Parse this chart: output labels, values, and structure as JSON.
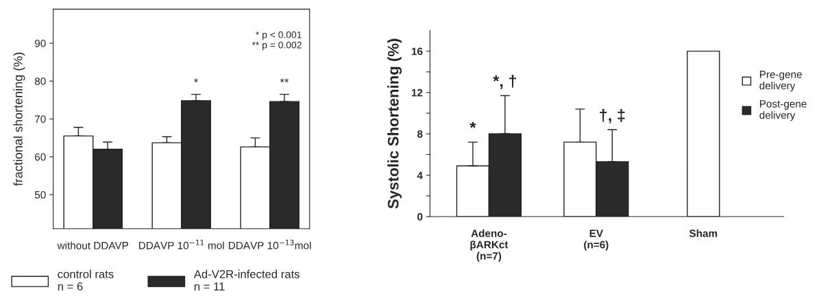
{
  "chart_data": [
    {
      "type": "bar",
      "ylabel": "fractional shortening (%)",
      "categories": [
        "without DDAVP",
        "DDAVP 10$^{−11}$ mol",
        "DDAVP 10$^{−13}$mol"
      ],
      "series": [
        {
          "name": "control rats\nn = 6",
          "color": "#ffffff",
          "values": [
            65.5,
            63.7,
            62.6
          ],
          "errors": [
            [
              65.5,
              67.8
            ],
            [
              63.7,
              65.3
            ],
            [
              62.6,
              65.0
            ]
          ]
        },
        {
          "name": "Ad-V2R-infected rats\nn = 11",
          "color": "#2a2a2a",
          "values": [
            62.0,
            74.8,
            74.6
          ],
          "errors": [
            [
              62.0,
              63.9
            ],
            [
              74.8,
              76.5
            ],
            [
              74.6,
              76.5
            ]
          ]
        }
      ],
      "ylim": [
        41,
        99
      ],
      "yticks": [
        50,
        60,
        70,
        80,
        90
      ],
      "legend": "bottom",
      "annotations": [
        "* p < 0.001\n** p = 0.002",
        {
          "text": "*",
          "x": "DDAVP 10$^{−11}$ mol",
          "y": 74.8
        },
        {
          "text": "**",
          "x": "DDAVP 10$^{−13}$mol",
          "y": 74.6
        }
      ]
    },
    {
      "type": "bar",
      "ylabel": "Systolic Shortening (%)",
      "categories": [
        "Adeno-\nβARKct\n(n=7)",
        "EV\n(n=6)",
        "Sham"
      ],
      "series": [
        {
          "name": "Pre-gene\ndelivery",
          "color": "#ffffff",
          "values": [
            4.9,
            7.2,
            null
          ],
          "errors": [
            [
              4.9,
              7.2
            ],
            [
              7.2,
              10.4
            ],
            null
          ]
        },
        {
          "name": "Post-gene\ndelivery",
          "color": "#2a2a2a",
          "values": [
            8.0,
            5.3,
            null
          ],
          "errors": [
            [
              8.0,
              11.7
            ],
            [
              5.3,
              8.4
            ],
            null
          ]
        },
        {
          "color": "#ffffff",
          "values": [
            null,
            null,
            16.0
          ]
        }
      ],
      "ylim": [
        0,
        18
      ],
      "yticks": [
        0,
        {
          "value": 2,
          "label": null
        },
        4,
        {
          "value": 6,
          "label": null
        },
        8,
        {
          "value": 10,
          "label": null
        },
        12,
        {
          "value": 14,
          "label": null
        },
        16
      ],
      "legend": "top right",
      "annotations": [
        {
          "text": "*",
          "x": "Adeno-\nβARKct\n(n=7)",
          "y": 4.9
        },
        {
          "text": "*, †",
          "x": "Adeno-\nβARKct\n(n=7)",
          "y": 8.0
        },
        {
          "text": "†, ‡",
          "x": "EV\n(n=6)",
          "y": 5.3
        }
      ]
    }
  ]
}
